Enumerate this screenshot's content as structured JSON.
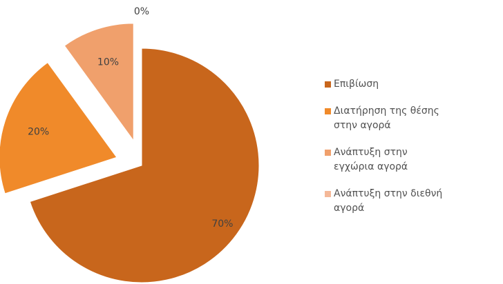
{
  "chart_data": {
    "type": "pie",
    "categories": [
      "Επιβίωση",
      "Διατήρηση της θέσης στην αγορά",
      "Ανάπτυξη στην εγχώρια αγορά",
      "Ανάπτυξη στην διεθνή αγορά"
    ],
    "values": [
      70,
      20,
      10,
      0
    ],
    "value_labels": [
      "70%",
      "20%",
      "10%",
      "0%"
    ],
    "colors": [
      "#c8661c",
      "#f08a2a",
      "#f0a06c",
      "#f4b898"
    ],
    "legend": "right"
  }
}
